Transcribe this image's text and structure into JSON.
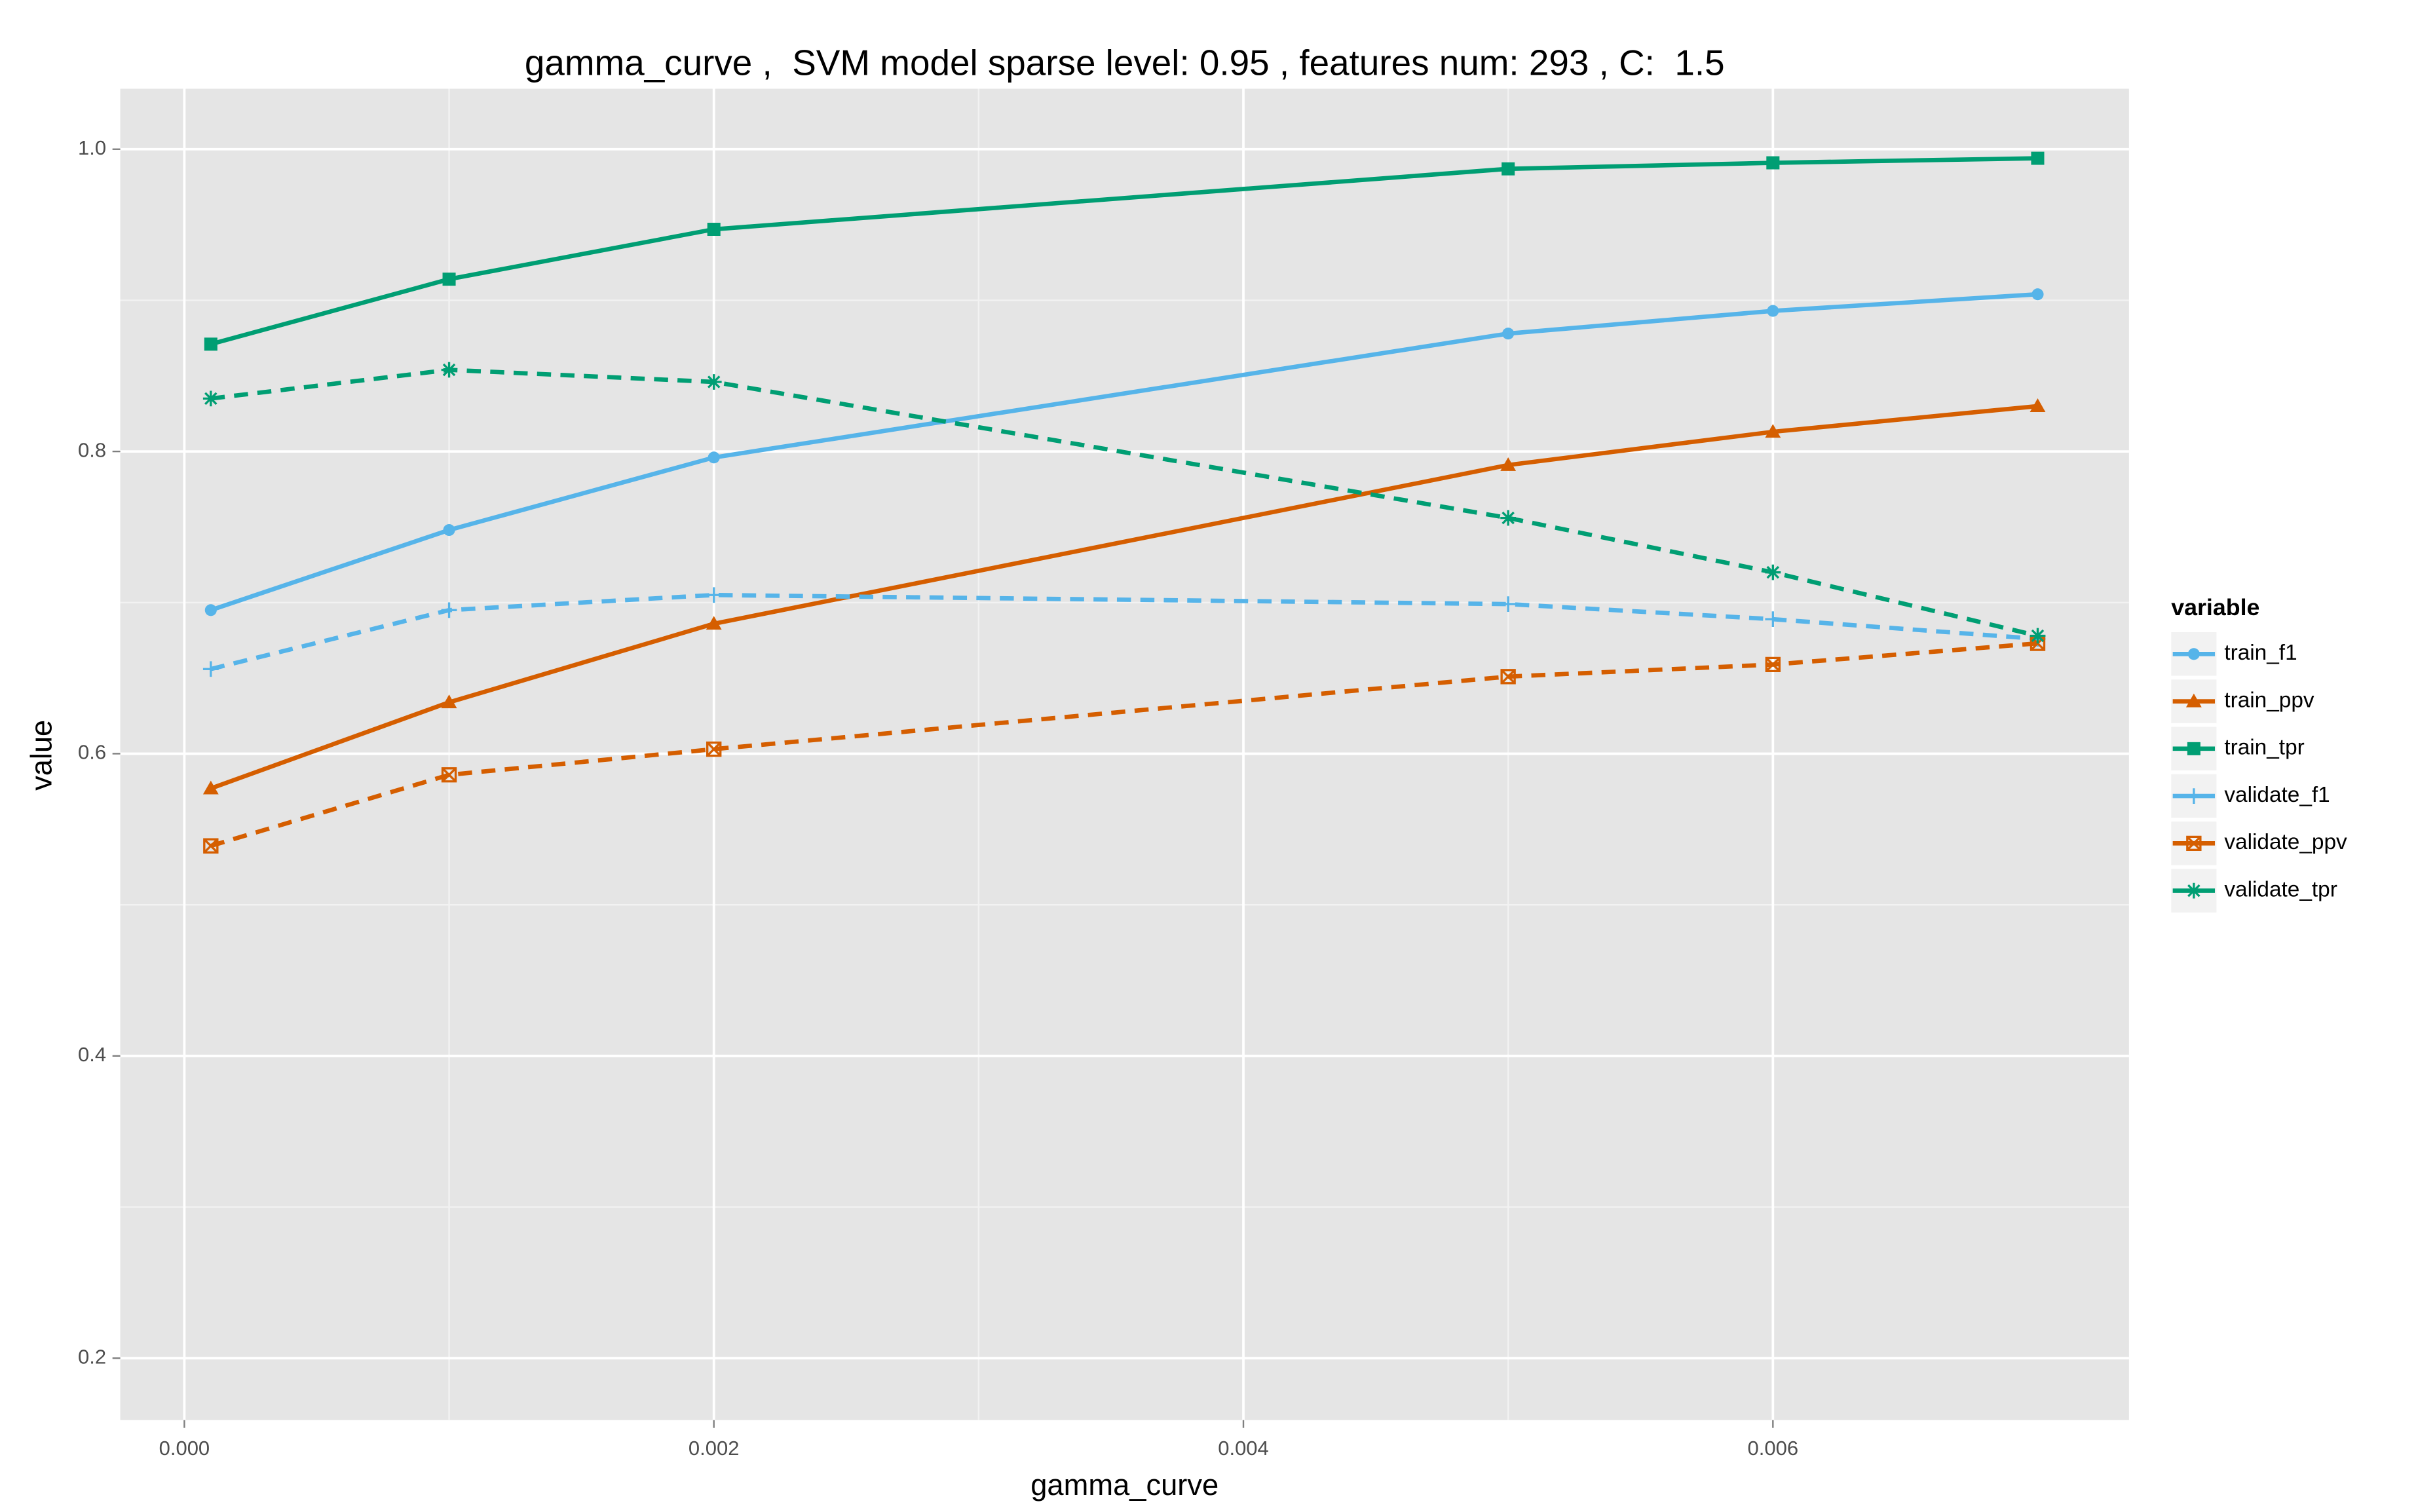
{
  "chart_data": {
    "type": "line",
    "title": "gamma_curve ,  SVM model sparse level: 0.95 , features num: 293 , C:  1.5",
    "x_label": "gamma_curve",
    "y_label": "value",
    "legend_title": "variable",
    "legend_position": "right",
    "grid": true,
    "x": [
      0.0001,
      0.001,
      0.002,
      0.005,
      0.006,
      0.007
    ],
    "xlim": [
      -0.000242,
      0.007345
    ],
    "ylim": [
      0.159,
      1.04
    ],
    "xticks": [
      {
        "value": 0,
        "label": "0.000"
      },
      0.002,
      0.004,
      0.006
    ],
    "yticks": [
      0.2,
      0.4,
      0.6,
      0.8,
      {
        "value": 1,
        "label": "1.0"
      }
    ],
    "series": [
      {
        "name": "train_f1",
        "color": "#56b4e9",
        "linestyle": "solid",
        "marker": "circle",
        "values": [
          0.695,
          0.748,
          0.796,
          0.878,
          0.893,
          0.904
        ]
      },
      {
        "name": "train_ppv",
        "color": "#d55e00",
        "linestyle": "solid",
        "marker": "triangle",
        "values": [
          0.577,
          0.634,
          0.686,
          0.791,
          0.813,
          0.83
        ]
      },
      {
        "name": "train_tpr",
        "color": "#009e73",
        "linestyle": "solid",
        "marker": "square",
        "values": [
          0.871,
          0.914,
          0.947,
          0.987,
          0.991,
          0.994
        ]
      },
      {
        "name": "validate_f1",
        "color": "#56b4e9",
        "linestyle": "dashed",
        "marker": "plus",
        "values": [
          0.656,
          0.695,
          0.705,
          0.699,
          0.689,
          0.676
        ]
      },
      {
        "name": "validate_ppv",
        "color": "#d55e00",
        "linestyle": "dashed",
        "marker": "square-cross",
        "values": [
          0.539,
          0.586,
          0.603,
          0.651,
          0.659,
          0.673
        ]
      },
      {
        "name": "validate_tpr",
        "color": "#009e73",
        "linestyle": "dashed",
        "marker": "asterisk",
        "values": [
          0.835,
          0.854,
          0.846,
          0.756,
          0.72,
          0.678
        ]
      }
    ]
  }
}
